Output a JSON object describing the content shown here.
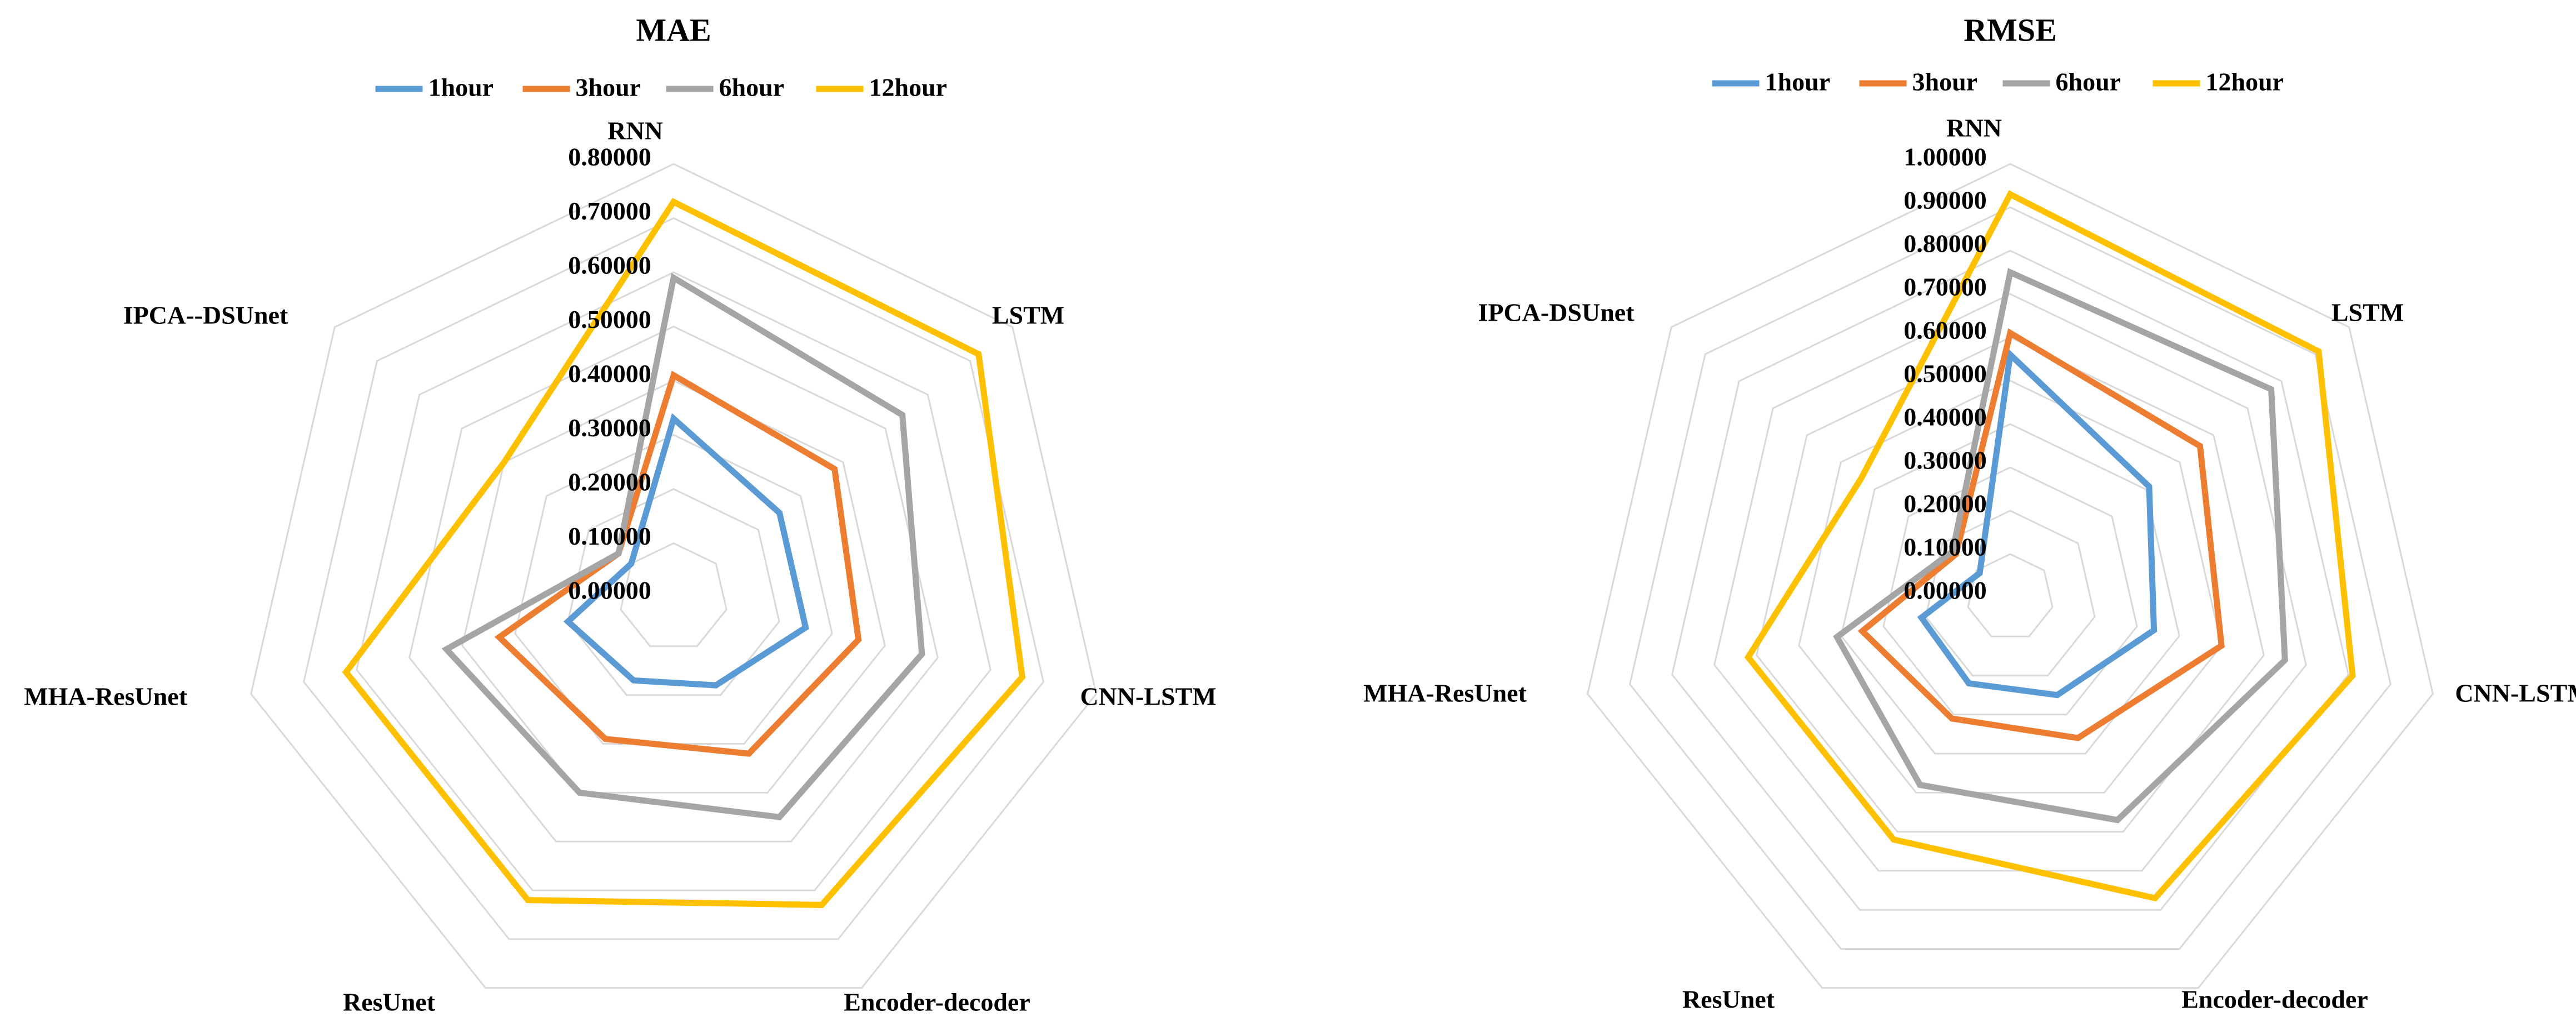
{
  "colors": {
    "1hour": "#5b9bd5",
    "3hour": "#ed7d31",
    "6hour": "#a5a5a5",
    "12hour": "#ffc000",
    "grid": "#d9d9d9"
  },
  "chart_data": [
    {
      "type": "radar",
      "title": "MAE",
      "categories": [
        "RNN",
        "LSTM",
        "CNN-LSTM",
        "Encoder-decoder",
        "ResUnet",
        "MHA-ResUnet",
        "IPCA--DSUnet"
      ],
      "ticks": [
        "0.00000",
        "0.10000",
        "0.20000",
        "0.30000",
        "0.40000",
        "0.50000",
        "0.60000",
        "0.70000",
        "0.80000"
      ],
      "rlim": [
        0,
        0.8
      ],
      "legend": "top",
      "series": [
        {
          "name": "1hour",
          "values": [
            0.33,
            0.25,
            0.25,
            0.18,
            0.17,
            0.2,
            0.1
          ]
        },
        {
          "name": "3hour",
          "values": [
            0.41,
            0.38,
            0.35,
            0.32,
            0.29,
            0.33,
            0.13
          ]
        },
        {
          "name": "6hour",
          "values": [
            0.59,
            0.54,
            0.47,
            0.45,
            0.4,
            0.43,
            0.13
          ]
        },
        {
          "name": "12hour",
          "values": [
            0.73,
            0.72,
            0.66,
            0.63,
            0.62,
            0.62,
            0.4
          ]
        }
      ]
    },
    {
      "type": "radar",
      "title": "RMSE",
      "categories": [
        "RNN",
        "LSTM",
        "CNN-LSTM",
        "Encoder-decoder",
        "ResUnet",
        "MHA-ResUnet",
        "IPCA-DSUnet"
      ],
      "ticks": [
        "0.00000",
        "0.10000",
        "0.20000",
        "0.30000",
        "0.40000",
        "0.50000",
        "0.60000",
        "0.70000",
        "0.80000",
        "0.90000",
        "1.00000"
      ],
      "rlim": [
        0,
        1.0
      ],
      "legend": "top",
      "series": [
        {
          "name": "1hour",
          "values": [
            0.56,
            0.41,
            0.34,
            0.25,
            0.22,
            0.21,
            0.09
          ]
        },
        {
          "name": "3hour",
          "values": [
            0.61,
            0.56,
            0.5,
            0.36,
            0.31,
            0.35,
            0.16
          ]
        },
        {
          "name": "6hour",
          "values": [
            0.75,
            0.77,
            0.65,
            0.57,
            0.48,
            0.41,
            0.17
          ]
        },
        {
          "name": "12hour",
          "values": [
            0.93,
            0.91,
            0.81,
            0.77,
            0.62,
            0.62,
            0.44
          ]
        }
      ]
    }
  ]
}
